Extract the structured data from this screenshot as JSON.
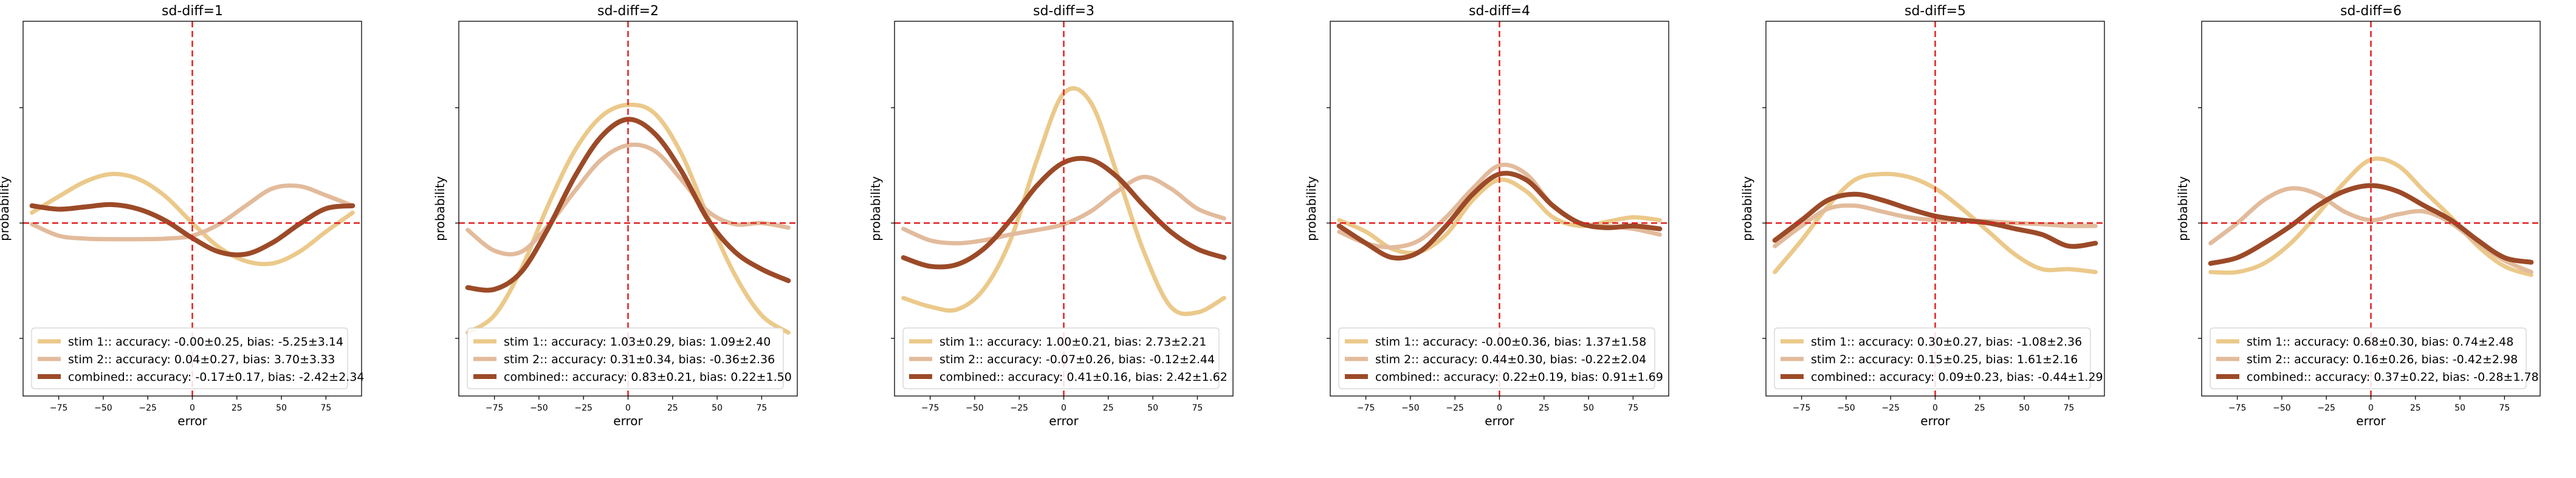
{
  "chart_data": [
    {
      "type": "line",
      "title": "sd-diff=1",
      "xlabel": "error",
      "ylabel": "probability",
      "xlim": [
        -95,
        95
      ],
      "xticks": [
        -75,
        -50,
        -25,
        0,
        25,
        50,
        75
      ],
      "series": [
        {
          "name": "stim 1:: accuracy: -0.00±0.25, bias: -5.25±3.14",
          "color": "#ebc98a",
          "x": [
            -90,
            -75,
            -60,
            -45,
            -30,
            -15,
            0,
            15,
            30,
            45,
            60,
            75,
            90
          ],
          "y": [
            0.18,
            0.46,
            0.72,
            0.85,
            0.76,
            0.46,
            0.0,
            -0.42,
            -0.66,
            -0.7,
            -0.5,
            -0.15,
            0.18
          ]
        },
        {
          "name": "stim 2:: accuracy: 0.04±0.27, bias: 3.70±3.33",
          "color": "#e2bb9c",
          "x": [
            -90,
            -75,
            -60,
            -45,
            -30,
            -15,
            0,
            15,
            30,
            45,
            60,
            75,
            90
          ],
          "y": [
            -0.02,
            -0.22,
            -0.27,
            -0.28,
            -0.28,
            -0.27,
            -0.22,
            -0.02,
            0.3,
            0.6,
            0.64,
            0.48,
            0.3
          ]
        },
        {
          "name": "combined:: accuracy: -0.17±0.17, bias: -2.42±2.34",
          "color": "#9c4a28",
          "x": [
            -90,
            -75,
            -60,
            -45,
            -30,
            -15,
            0,
            15,
            30,
            45,
            60,
            75,
            90
          ],
          "y": [
            0.3,
            0.24,
            0.28,
            0.32,
            0.24,
            0.04,
            -0.26,
            -0.5,
            -0.54,
            -0.34,
            -0.02,
            0.25,
            0.3
          ]
        }
      ]
    },
    {
      "type": "line",
      "title": "sd-diff=2",
      "xlabel": "error",
      "ylabel": "probability",
      "xlim": [
        -95,
        95
      ],
      "xticks": [
        -75,
        -50,
        -25,
        0,
        25,
        50,
        75
      ],
      "series": [
        {
          "name": "stim 1:: accuracy: 1.03±0.29, bias: 1.09±2.40",
          "color": "#ebc98a",
          "x": [
            -90,
            -75,
            -60,
            -45,
            -30,
            -15,
            0,
            15,
            30,
            45,
            60,
            75,
            90
          ],
          "y": [
            -1.9,
            -1.6,
            -0.8,
            0.3,
            1.25,
            1.85,
            2.05,
            1.9,
            1.2,
            0.1,
            -0.9,
            -1.6,
            -1.9
          ]
        },
        {
          "name": "stim 2:: accuracy: 0.31±0.34, bias: -0.36±2.36",
          "color": "#e2bb9c",
          "x": [
            -90,
            -75,
            -60,
            -45,
            -30,
            -15,
            0,
            15,
            30,
            45,
            60,
            75,
            90
          ],
          "y": [
            -0.12,
            -0.48,
            -0.5,
            -0.05,
            0.55,
            1.1,
            1.35,
            1.25,
            0.75,
            0.2,
            -0.02,
            0.0,
            -0.08
          ]
        },
        {
          "name": "combined:: accuracy: 0.83±0.21, bias: 0.22±1.50",
          "color": "#9c4a28",
          "x": [
            -90,
            -75,
            -60,
            -45,
            -30,
            -15,
            0,
            15,
            30,
            45,
            60,
            75,
            90
          ],
          "y": [
            -1.12,
            -1.15,
            -0.85,
            -0.1,
            0.8,
            1.5,
            1.8,
            1.55,
            0.9,
            0.05,
            -0.5,
            -0.8,
            -1.0
          ]
        }
      ]
    },
    {
      "type": "line",
      "title": "sd-diff=3",
      "xlabel": "error",
      "ylabel": "probability",
      "xlim": [
        -95,
        95
      ],
      "xticks": [
        -75,
        -50,
        -25,
        0,
        25,
        50,
        75
      ],
      "series": [
        {
          "name": "stim 1:: accuracy: 1.00±0.21, bias: 2.73±2.21",
          "color": "#ebc98a",
          "x": [
            -90,
            -75,
            -60,
            -45,
            -30,
            -15,
            0,
            15,
            30,
            45,
            60,
            75,
            90
          ],
          "y": [
            -1.3,
            -1.45,
            -1.5,
            -1.15,
            -0.3,
            1.1,
            2.25,
            2.1,
            0.85,
            -0.5,
            -1.45,
            -1.55,
            -1.3
          ]
        },
        {
          "name": "stim 2:: accuracy: -0.07±0.26, bias: -0.12±2.44",
          "color": "#e2bb9c",
          "x": [
            -90,
            -75,
            -60,
            -45,
            -30,
            -15,
            0,
            15,
            30,
            45,
            60,
            75,
            90
          ],
          "y": [
            -0.1,
            -0.3,
            -0.35,
            -0.3,
            -0.2,
            -0.12,
            -0.02,
            0.2,
            0.55,
            0.8,
            0.6,
            0.25,
            0.08
          ]
        },
        {
          "name": "combined:: accuracy: 0.41±0.16, bias: 2.42±1.62",
          "color": "#9c4a28",
          "x": [
            -90,
            -75,
            -60,
            -45,
            -30,
            -15,
            0,
            15,
            30,
            45,
            60,
            75,
            90
          ],
          "y": [
            -0.6,
            -0.75,
            -0.72,
            -0.45,
            0.05,
            0.65,
            1.05,
            1.1,
            0.8,
            0.3,
            -0.15,
            -0.45,
            -0.6
          ]
        }
      ]
    },
    {
      "type": "line",
      "title": "sd-diff=4",
      "xlabel": "error",
      "ylabel": "probability",
      "xlim": [
        -95,
        95
      ],
      "xticks": [
        -75,
        -50,
        -25,
        0,
        25,
        50,
        75
      ],
      "series": [
        {
          "name": "stim 1:: accuracy: -0.00±0.36, bias: 1.37±1.58",
          "color": "#ebc98a",
          "x": [
            -90,
            -75,
            -60,
            -45,
            -30,
            -15,
            0,
            15,
            30,
            45,
            60,
            75,
            90
          ],
          "y": [
            0.05,
            -0.15,
            -0.45,
            -0.5,
            -0.2,
            0.4,
            0.75,
            0.55,
            0.1,
            -0.05,
            0.02,
            0.1,
            0.05
          ]
        },
        {
          "name": "stim 2:: accuracy: 0.44±0.30, bias: -0.22±2.04",
          "color": "#e2bb9c",
          "x": [
            -90,
            -75,
            -60,
            -45,
            -30,
            -15,
            0,
            15,
            30,
            45,
            60,
            75,
            90
          ],
          "y": [
            -0.15,
            -0.35,
            -0.42,
            -0.3,
            0.1,
            0.6,
            1.0,
            0.85,
            0.3,
            0.0,
            -0.05,
            -0.1,
            -0.2
          ]
        },
        {
          "name": "combined:: accuracy: 0.22±0.19, bias: 0.91±1.69",
          "color": "#9c4a28",
          "x": [
            -90,
            -75,
            -60,
            -45,
            -30,
            -15,
            0,
            15,
            30,
            45,
            60,
            75,
            90
          ],
          "y": [
            -0.05,
            -0.35,
            -0.6,
            -0.5,
            -0.05,
            0.5,
            0.85,
            0.75,
            0.3,
            0.0,
            -0.08,
            -0.05,
            -0.1
          ]
        }
      ]
    },
    {
      "type": "line",
      "title": "sd-diff=5",
      "xlabel": "error",
      "ylabel": "probability",
      "xlim": [
        -95,
        95
      ],
      "xticks": [
        -75,
        -50,
        -25,
        0,
        25,
        50,
        75
      ],
      "series": [
        {
          "name": "stim 1:: accuracy: 0.30±0.27, bias: -1.08±2.36",
          "color": "#ebc98a",
          "x": [
            -90,
            -75,
            -60,
            -45,
            -30,
            -15,
            0,
            15,
            30,
            45,
            60,
            75,
            90
          ],
          "y": [
            -0.85,
            -0.3,
            0.3,
            0.75,
            0.85,
            0.8,
            0.6,
            0.25,
            -0.15,
            -0.55,
            -0.8,
            -0.8,
            -0.85
          ]
        },
        {
          "name": "stim 2:: accuracy: 0.15±0.25, bias: 1.61±2.16",
          "color": "#e2bb9c",
          "x": [
            -90,
            -75,
            -60,
            -45,
            -30,
            -15,
            0,
            15,
            30,
            45,
            60,
            75,
            90
          ],
          "y": [
            -0.4,
            -0.05,
            0.25,
            0.3,
            0.2,
            0.1,
            0.05,
            0.05,
            0.03,
            0.0,
            -0.02,
            -0.05,
            -0.05
          ]
        },
        {
          "name": "combined:: accuracy: 0.09±0.23, bias: -0.44±1.29",
          "color": "#9c4a28",
          "x": [
            -90,
            -75,
            -60,
            -45,
            -30,
            -15,
            0,
            15,
            30,
            45,
            60,
            75,
            90
          ],
          "y": [
            -0.3,
            0.05,
            0.4,
            0.5,
            0.4,
            0.25,
            0.12,
            0.05,
            0.0,
            -0.1,
            -0.2,
            -0.4,
            -0.35
          ]
        }
      ]
    },
    {
      "type": "line",
      "title": "sd-diff=6",
      "xlabel": "error",
      "ylabel": "probability",
      "xlim": [
        -95,
        95
      ],
      "xticks": [
        -75,
        -50,
        -25,
        0,
        25,
        50,
        75
      ],
      "series": [
        {
          "name": "stim 1:: accuracy: 0.68±0.30, bias: 0.74±2.48",
          "color": "#ebc98a",
          "x": [
            -90,
            -75,
            -60,
            -45,
            -30,
            -15,
            0,
            15,
            30,
            45,
            60,
            75,
            90
          ],
          "y": [
            -0.85,
            -0.85,
            -0.7,
            -0.35,
            0.15,
            0.7,
            1.1,
            1.0,
            0.55,
            0.1,
            -0.4,
            -0.75,
            -0.9
          ]
        },
        {
          "name": "stim 2:: accuracy: 0.16±0.26, bias: -0.42±2.98",
          "color": "#e2bb9c",
          "x": [
            -90,
            -75,
            -60,
            -45,
            -30,
            -15,
            0,
            15,
            30,
            45,
            60,
            75,
            90
          ],
          "y": [
            -0.35,
            0.0,
            0.4,
            0.6,
            0.5,
            0.2,
            0.05,
            0.15,
            0.2,
            0.0,
            -0.35,
            -0.65,
            -0.85
          ]
        },
        {
          "name": "combined:: accuracy: 0.37±0.22, bias: -0.28±1.78",
          "color": "#9c4a28",
          "x": [
            -90,
            -75,
            -60,
            -45,
            -30,
            -15,
            0,
            15,
            30,
            45,
            60,
            75,
            90
          ],
          "y": [
            -0.7,
            -0.6,
            -0.35,
            -0.05,
            0.3,
            0.55,
            0.65,
            0.55,
            0.3,
            0.05,
            -0.3,
            -0.6,
            -0.68
          ]
        }
      ]
    }
  ]
}
